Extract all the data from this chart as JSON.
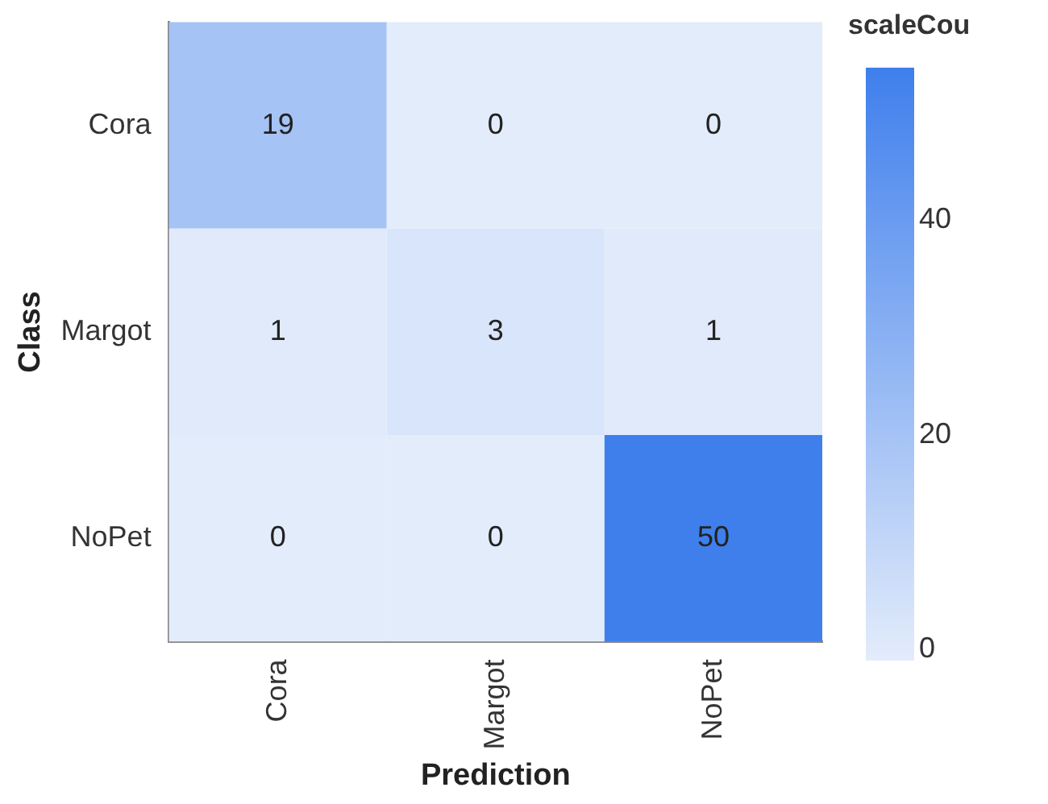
{
  "chart_data": {
    "type": "heatmap",
    "xlabel": "Prediction",
    "ylabel": "Class",
    "legend_title": "scaleCou",
    "categories": [
      "Cora",
      "Margot",
      "NoPet"
    ],
    "y_categories": [
      "Cora",
      "Margot",
      "NoPet"
    ],
    "cells": [
      [
        19,
        0,
        0
      ],
      [
        1,
        3,
        1
      ],
      [
        0,
        0,
        50
      ]
    ],
    "clim": [
      0,
      50
    ],
    "cticks": [
      0,
      20,
      40
    ],
    "data_labels": true
  }
}
